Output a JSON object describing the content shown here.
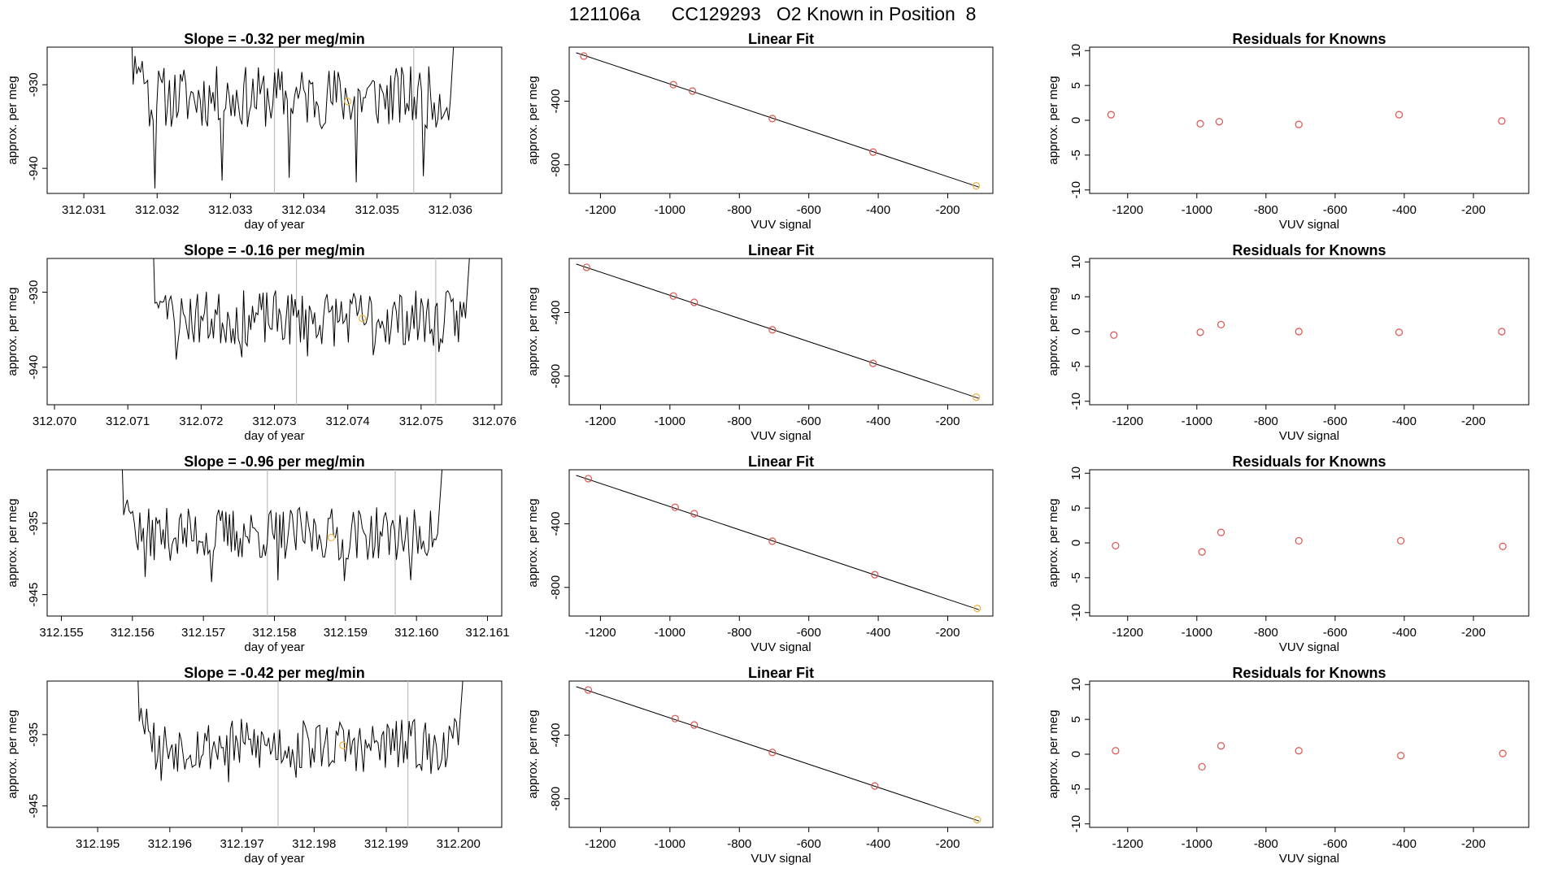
{
  "page_title": "121106a      CC129293   O2 Known in Position  8",
  "chart_data": [
    {
      "type": "line",
      "panel": "time-series",
      "title": "Slope =  -0.32  per meg/min",
      "xlabel": "day of year",
      "ylabel": "approx. per meg",
      "xlim": [
        312.0305,
        312.0367
      ],
      "ylim": [
        -943.0,
        -925.5
      ],
      "xticks": [
        "312.031",
        "312.032",
        "312.033",
        "312.034",
        "312.035",
        "312.036"
      ],
      "yticks": [
        "-930",
        "-940"
      ],
      "ytick_values": [
        -930,
        -940
      ],
      "vlines": [
        312.0336,
        312.0355
      ],
      "marker": {
        "x": 312.0346,
        "y": -932.0
      },
      "seed": 11,
      "line_start": 312.0315,
      "line_end": 312.0362,
      "base": -931.5,
      "dip": -941.5
    },
    {
      "type": "scatter",
      "panel": "linear-fit",
      "title": "Linear Fit",
      "xlabel": "VUV signal",
      "ylabel": "approx. per meg",
      "xlim": [
        -1290,
        -70
      ],
      "ylim": [
        -980,
        -60
      ],
      "xticks": [
        "-1200",
        "-1000",
        "-800",
        "-600",
        "-400",
        "-200"
      ],
      "xtick_values": [
        -1200,
        -1000,
        -800,
        -600,
        -400,
        -200
      ],
      "yticks": [
        "-400",
        "-800"
      ],
      "ytick_values": [
        -400,
        -800
      ],
      "fit_line": {
        "x": [
          -1270,
          -110
        ],
        "y": [
          -95,
          -940
        ]
      },
      "points": {
        "x": [
          -1248,
          -990,
          -935,
          -705,
          -415,
          -118
        ],
        "y": [
          -116,
          -296,
          -336,
          -509,
          -720,
          -932
        ]
      }
    },
    {
      "type": "scatter",
      "panel": "residuals",
      "title": "Residuals for Knowns",
      "xlabel": "VUV signal",
      "ylabel": "approx. per meg",
      "xlim": [
        -1310,
        -40
      ],
      "ylim": [
        -10.5,
        10.5
      ],
      "xticks": [
        "-1200",
        "-1000",
        "-800",
        "-600",
        "-400",
        "-200"
      ],
      "xtick_values": [
        -1200,
        -1000,
        -800,
        -600,
        -400,
        -200
      ],
      "yticks": [
        "-10",
        "-5",
        "0",
        "5",
        "10"
      ],
      "ytick_values": [
        -10,
        -5,
        0,
        5,
        10
      ],
      "points": {
        "x": [
          -1248,
          -990,
          -935,
          -705,
          -415,
          -118
        ],
        "y": [
          0.8,
          -0.5,
          -0.2,
          -0.6,
          0.8,
          -0.1
        ]
      }
    },
    {
      "type": "line",
      "panel": "time-series",
      "title": "Slope =  -0.16  per meg/min",
      "xlabel": "day of year",
      "ylabel": "approx. per meg",
      "xlim": [
        312.0699,
        312.0761
      ],
      "ylim": [
        -945.0,
        -925.5
      ],
      "xticks": [
        "312.070",
        "312.071",
        "312.072",
        "312.073",
        "312.074",
        "312.075",
        "312.076"
      ],
      "yticks": [
        "-930",
        "-940"
      ],
      "ytick_values": [
        -930,
        -940
      ],
      "vlines": [
        312.0733,
        312.0752
      ],
      "marker": {
        "x": 312.0742,
        "y": -933.5
      },
      "seed": 23,
      "line_start": 312.0712,
      "line_end": 312.0758,
      "base": -933.5,
      "dip": -938.5
    },
    {
      "type": "scatter",
      "panel": "linear-fit",
      "title": "Linear Fit",
      "xlabel": "VUV signal",
      "ylabel": "approx. per meg",
      "xlim": [
        -1290,
        -70
      ],
      "ylim": [
        -980,
        -60
      ],
      "xticks": [
        "-1200",
        "-1000",
        "-800",
        "-600",
        "-400",
        "-200"
      ],
      "xtick_values": [
        -1200,
        -1000,
        -800,
        -600,
        -400,
        -200
      ],
      "yticks": [
        "-400",
        "-800"
      ],
      "ytick_values": [
        -400,
        -800
      ],
      "fit_line": {
        "x": [
          -1270,
          -110
        ],
        "y": [
          -95,
          -940
        ]
      },
      "points": {
        "x": [
          -1240,
          -990,
          -930,
          -705,
          -415,
          -118
        ],
        "y": [
          -116,
          -296,
          -336,
          -509,
          -720,
          -932
        ]
      }
    },
    {
      "type": "scatter",
      "panel": "residuals",
      "title": "Residuals for Knowns",
      "xlabel": "VUV signal",
      "ylabel": "approx. per meg",
      "xlim": [
        -1310,
        -40
      ],
      "ylim": [
        -10.5,
        10.5
      ],
      "xticks": [
        "-1200",
        "-1000",
        "-800",
        "-600",
        "-400",
        "-200"
      ],
      "xtick_values": [
        -1200,
        -1000,
        -800,
        -600,
        -400,
        -200
      ],
      "yticks": [
        "-10",
        "-5",
        "0",
        "5",
        "10"
      ],
      "ytick_values": [
        -10,
        -5,
        0,
        5,
        10
      ],
      "points": {
        "x": [
          -1240,
          -990,
          -930,
          -705,
          -415,
          -118
        ],
        "y": [
          -0.5,
          -0.1,
          1.0,
          0.0,
          -0.1,
          0.0
        ]
      }
    },
    {
      "type": "line",
      "panel": "time-series",
      "title": "Slope =  -0.96  per meg/min",
      "xlabel": "day of year",
      "ylabel": "approx. per meg",
      "xlim": [
        312.1548,
        312.1612
      ],
      "ylim": [
        -948.0,
        -927.5
      ],
      "xticks": [
        "312.155",
        "312.156",
        "312.157",
        "312.158",
        "312.159",
        "312.160",
        "312.161"
      ],
      "yticks": [
        "-935",
        "-945"
      ],
      "ytick_values": [
        -935,
        -945
      ],
      "vlines": [
        312.1579,
        312.1597
      ],
      "marker": {
        "x": 312.1588,
        "y": -937.0
      },
      "seed": 37,
      "line_start": 312.1557,
      "line_end": 312.1605,
      "base": -936.5,
      "dip": -943.5
    },
    {
      "type": "scatter",
      "panel": "linear-fit",
      "title": "Linear Fit",
      "xlabel": "VUV signal",
      "ylabel": "approx. per meg",
      "xlim": [
        -1290,
        -70
      ],
      "ylim": [
        -980,
        -60
      ],
      "xticks": [
        "-1200",
        "-1000",
        "-800",
        "-600",
        "-400",
        "-200"
      ],
      "xtick_values": [
        -1200,
        -1000,
        -800,
        -600,
        -400,
        -200
      ],
      "yticks": [
        "-400",
        "-800"
      ],
      "ytick_values": [
        -400,
        -800
      ],
      "fit_line": {
        "x": [
          -1270,
          -110
        ],
        "y": [
          -95,
          -940
        ]
      },
      "points": {
        "x": [
          -1235,
          -985,
          -930,
          -705,
          -410,
          -115
        ],
        "y": [
          -116,
          -296,
          -336,
          -509,
          -720,
          -932
        ]
      }
    },
    {
      "type": "scatter",
      "panel": "residuals",
      "title": "Residuals for Knowns",
      "xlabel": "VUV signal",
      "ylabel": "approx. per meg",
      "xlim": [
        -1310,
        -40
      ],
      "ylim": [
        -10.5,
        10.5
      ],
      "xticks": [
        "-1200",
        "-1000",
        "-800",
        "-600",
        "-400",
        "-200"
      ],
      "xtick_values": [
        -1200,
        -1000,
        -800,
        -600,
        -400,
        -200
      ],
      "yticks": [
        "-10",
        "-5",
        "0",
        "5",
        "10"
      ],
      "ytick_values": [
        -10,
        -5,
        0,
        5,
        10
      ],
      "points": {
        "x": [
          -1235,
          -985,
          -930,
          -705,
          -410,
          -115
        ],
        "y": [
          -0.4,
          -1.3,
          1.5,
          0.3,
          0.3,
          -0.5
        ]
      }
    },
    {
      "type": "line",
      "panel": "time-series",
      "title": "Slope =  -0.42  per meg/min",
      "xlabel": "day of year",
      "ylabel": "approx. per meg",
      "xlim": [
        312.1943,
        312.2006
      ],
      "ylim": [
        -948.0,
        -927.5
      ],
      "xticks": [
        "312.195",
        "312.196",
        "312.197",
        "312.198",
        "312.199",
        "312.200"
      ],
      "yticks": [
        "-935",
        "-945"
      ],
      "ytick_values": [
        -935,
        -945
      ],
      "vlines": [
        312.1975,
        312.1993
      ],
      "marker": {
        "x": 312.1984,
        "y": -936.5
      },
      "seed": 53,
      "line_start": 312.1954,
      "line_end": 312.2002,
      "base": -936.5,
      "dip": -941.0
    },
    {
      "type": "scatter",
      "panel": "linear-fit",
      "title": "Linear Fit",
      "xlabel": "VUV signal",
      "ylabel": "approx. per meg",
      "xlim": [
        -1290,
        -70
      ],
      "ylim": [
        -980,
        -60
      ],
      "xticks": [
        "-1200",
        "-1000",
        "-800",
        "-600",
        "-400",
        "-200"
      ],
      "xtick_values": [
        -1200,
        -1000,
        -800,
        -600,
        -400,
        -200
      ],
      "yticks": [
        "-400",
        "-800"
      ],
      "ytick_values": [
        -400,
        -800
      ],
      "fit_line": {
        "x": [
          -1270,
          -110
        ],
        "y": [
          -95,
          -940
        ]
      },
      "points": {
        "x": [
          -1235,
          -985,
          -930,
          -705,
          -410,
          -115
        ],
        "y": [
          -116,
          -296,
          -336,
          -509,
          -720,
          -932
        ]
      }
    },
    {
      "type": "scatter",
      "panel": "residuals",
      "title": "Residuals for Knowns",
      "xlabel": "VUV signal",
      "ylabel": "approx. per meg",
      "xlim": [
        -1310,
        -40
      ],
      "ylim": [
        -10.5,
        10.5
      ],
      "xticks": [
        "-1200",
        "-1000",
        "-800",
        "-600",
        "-400",
        "-200"
      ],
      "xtick_values": [
        -1200,
        -1000,
        -800,
        -600,
        -400,
        -200
      ],
      "yticks": [
        "-10",
        "-5",
        "0",
        "5",
        "10"
      ],
      "ytick_values": [
        -10,
        -5,
        0,
        5,
        10
      ],
      "points": {
        "x": [
          -1235,
          -985,
          -930,
          -705,
          -410,
          -115
        ],
        "y": [
          0.5,
          -1.8,
          1.2,
          0.5,
          -0.2,
          0.1
        ]
      }
    }
  ],
  "colors": {
    "axis": "#000000",
    "line": "#000000",
    "points": "#e0504a",
    "known_point": "#f0b040",
    "vline": "#bdbdbd"
  }
}
